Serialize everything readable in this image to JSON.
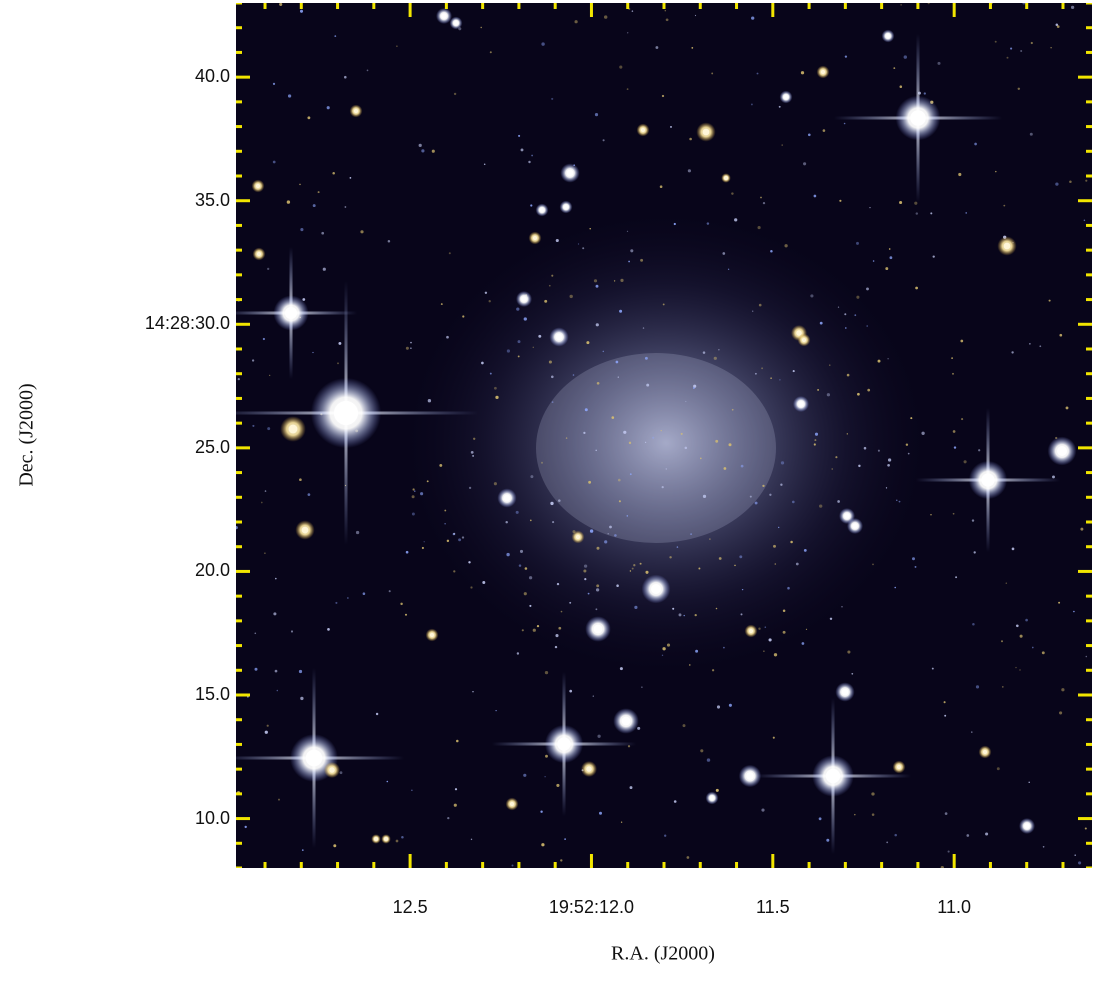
{
  "axes": {
    "x_label": "R.A. (J2000)",
    "y_label": "Dec. (J2000)",
    "x_ticks": [
      {
        "label": "12.5",
        "value": 12.5
      },
      {
        "label": "19:52:12.0",
        "value": 12.0
      },
      {
        "label": "11.5",
        "value": 11.5
      },
      {
        "label": "11.0",
        "value": 11.0
      }
    ],
    "y_ticks": [
      {
        "label": "40.0",
        "value": 40.0
      },
      {
        "label": "35.0",
        "value": 35.0
      },
      {
        "label": "14:28:30.0",
        "value": 30.0
      },
      {
        "label": "25.0",
        "value": 25.0
      },
      {
        "label": "20.0",
        "value": 20.0
      },
      {
        "label": "15.0",
        "value": 15.0
      },
      {
        "label": "10.0",
        "value": 10.0
      }
    ],
    "x_range": [
      12.98,
      10.62
    ],
    "y_range": [
      8.0,
      43.0
    ]
  },
  "colors": {
    "tick_color": "#f2e600",
    "sky": "#08051a",
    "galaxy_glow": "#b7bfe6"
  }
}
